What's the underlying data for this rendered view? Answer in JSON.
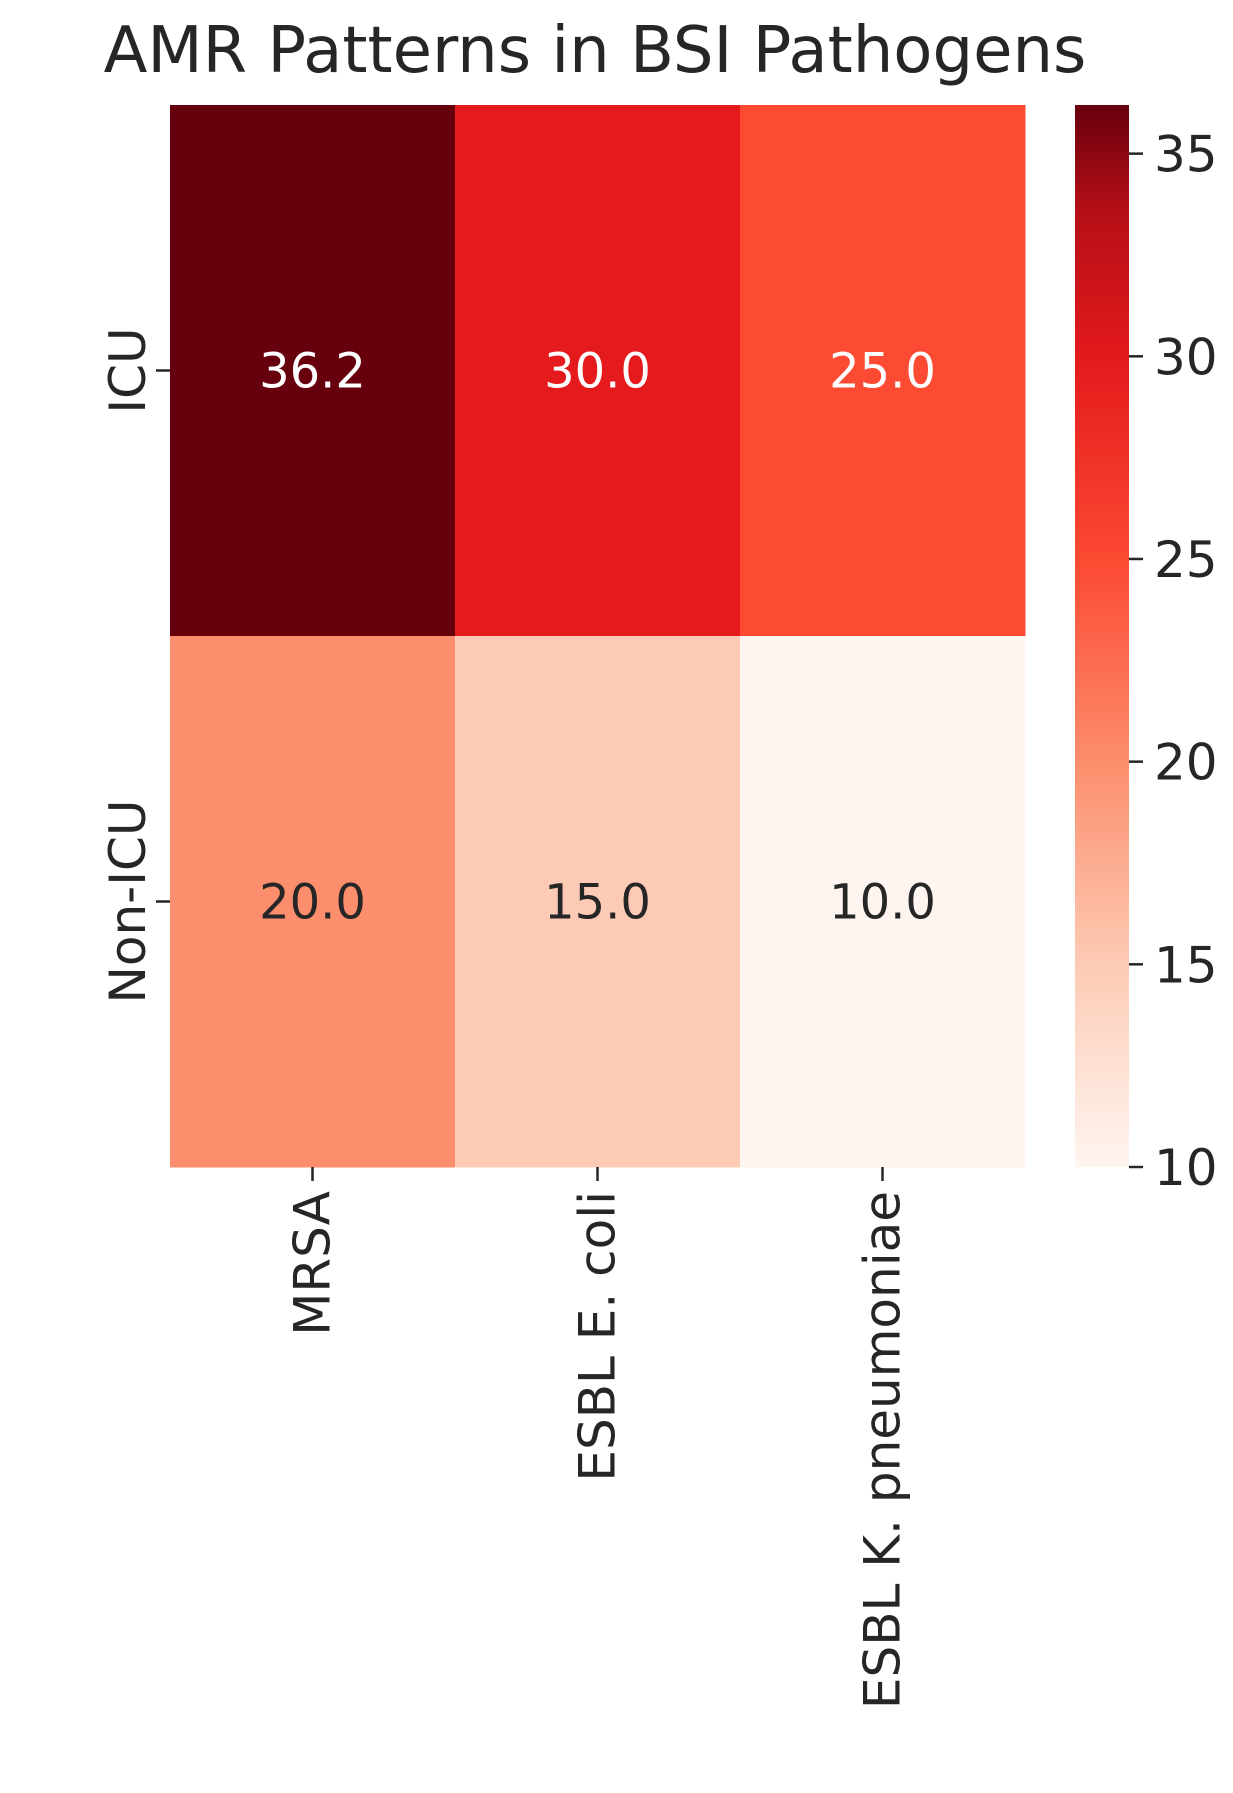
{
  "chart_data": {
    "type": "heatmap",
    "title": "AMR Patterns in BSI Pathogens",
    "xlabel": "",
    "ylabel": "",
    "x_categories": [
      "MRSA",
      "ESBL E. coli",
      "ESBL K. pneumoniae"
    ],
    "y_categories": [
      "ICU",
      "Non-ICU"
    ],
    "values": [
      [
        36.2,
        30.0,
        25.0
      ],
      [
        20.0,
        15.0,
        10.0
      ]
    ],
    "value_labels": [
      [
        "36.2",
        "30.0",
        "25.0"
      ],
      [
        "20.0",
        "15.0",
        "10.0"
      ]
    ],
    "colorbar": {
      "ticks": [
        10,
        15,
        20,
        25,
        30,
        35
      ],
      "range": [
        10,
        36.2
      ]
    },
    "colormap": "Reds",
    "cell_colors": [
      [
        "#67000d",
        "#e41a1c",
        "#fc4a33"
      ],
      [
        "#fc8e6d",
        "#fdcbb5",
        "#fff5f0"
      ]
    ],
    "annotation_colors": {
      "dark_cell": "#ffffff",
      "light_cell": "#262626"
    },
    "grid": false
  }
}
